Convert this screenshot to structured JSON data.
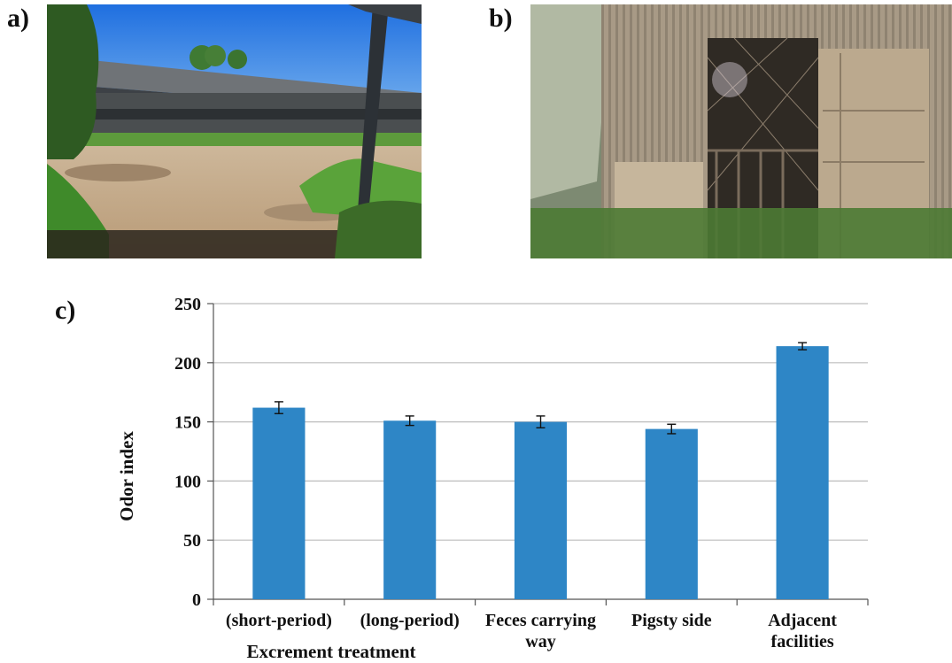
{
  "panels": {
    "a": {
      "label": "a)"
    },
    "b": {
      "label": "b)"
    },
    "c": {
      "label": "c)"
    }
  },
  "colors": {
    "bar": "#2e86c6",
    "grid": "#bdbdbd",
    "axis": "#555555"
  },
  "chart_data": {
    "type": "bar",
    "categories": [
      [
        "(short-period)"
      ],
      [
        "(long-period)"
      ],
      [
        "Feces carrying",
        "way"
      ],
      [
        "Pigsty side"
      ],
      [
        "Adjacent",
        "facilities"
      ]
    ],
    "group_label": "Excrement treatment",
    "values": [
      162,
      151,
      150,
      144,
      214
    ],
    "errors": [
      5,
      4,
      5,
      4,
      3
    ],
    "ylabel": "Odor index",
    "xlabel": "",
    "ylim": [
      0,
      250
    ],
    "yticks": [
      0,
      50,
      100,
      150,
      200,
      250
    ],
    "grid": true,
    "legend": "none"
  }
}
